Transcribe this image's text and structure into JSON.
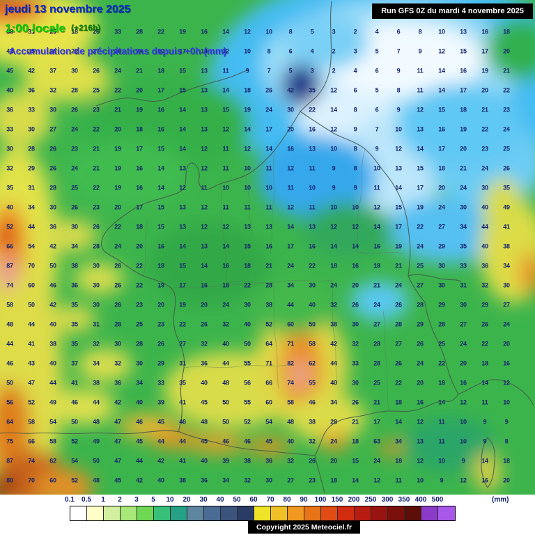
{
  "header": {
    "date_line": "jeudi 13 novembre 2025",
    "time_line": "1:00 locale",
    "offset": "(+216h)",
    "subtitle": "Accumulation de précipitations depuis +0h (mm)",
    "run_info": "Run GFS 0Z du mardi 4 novembre 2025"
  },
  "footer": {
    "copyright": "Copyright 2025 Meteociel.fr"
  },
  "legend": {
    "unit": "(mm)",
    "ticks": [
      "0.1",
      "0.5",
      "1",
      "2",
      "3",
      "5",
      "10",
      "20",
      "30",
      "40",
      "50",
      "60",
      "70",
      "80",
      "90",
      "100",
      "150",
      "200",
      "250",
      "300",
      "350",
      "400",
      "500"
    ],
    "colors": [
      "#FFFFFF",
      "#FFFFC8",
      "#D2F0A0",
      "#A8E878",
      "#6ED855",
      "#38C078",
      "#26A185",
      "#5E86A0",
      "#4A6C94",
      "#3A547E",
      "#2A3C64",
      "#F0E428",
      "#F0C028",
      "#F09820",
      "#E87418",
      "#E04C14",
      "#D02C10",
      "#B81C10",
      "#981410",
      "#7A100C",
      "#5C0E08",
      "#8A3CC8",
      "#A858E8"
    ]
  },
  "map": {
    "value_color": "#16246e",
    "rows": [
      "38 31 25 18 26 33 28 22 19 16 14 12 10 8 5 3 2 4 6 8 10 13 16 18",
      "42 35 28 22 27 30 24 20 17 14 12 10 8 6 4 2 3 5 7 9 12 15 17 20",
      "45 42 37 30 26 24 21 18 15 13 11 9 7 5 3 2 4 6 9 11 14 16 19 21",
      "40 36 32 28 25 22 20 17 15 13 14 18 26 42 35 12 6 5 8 11 14 17 20 22",
      "36 33 30 26 23 21 19 16 14 13 15 19 24 30 22 14 8 6 9 12 15 18 21 23",
      "33 30 27 24 22 20 18 16 14 13 12 14 17 20 16 12 9 7 10 13 16 19 22 24",
      "30 28 26 23 21 19 17 15 14 12 11 12 14 16 13 10 8 9 12 14 17 20 23 25",
      "32 29 26 24 21 19 16 14 13 12 11 10 11 12 11 9 8 10 13 15 18 21 24 26",
      "35 31 28 25 22 19 16 14 12 11 10 10 10 11 10 9 9 11 14 17 20 24 30 35",
      "40 34 30 26 23 20 17 15 13 12 11 11 11 12 11 10 10 12 15 19 24 30 40 49",
      "52 44 36 30 26 22 18 15 13 12 12 13 13 14 13 12 12 14 17 22 27 34 44 41",
      "66 54 42 34 28 24 20 16 14 13 14 15 16 17 16 14 14 16 19 24 29 35 40 38",
      "87 70 50 38 30 26 22 18 15 14 16 18 21 24 22 18 16 18 21 25 30 33 36 34",
      "74 60 46 36 30 26 22 19 17 16 18 22 28 34 30 24 20 21 24 27 30 31 32 30",
      "58 50 42 35 30 26 23 20 19 20 24 30 38 44 40 32 26 24 26 28 29 30 29 27",
      "48 44 40 35 31 28 25 23 22 26 32 40 52 60 50 38 30 27 28 29 28 27 26 24",
      "44 41 38 35 32 30 28 26 27 32 40 50 64 71 58 42 32 28 27 26 25 24 22 20",
      "46 43 40 37 34 32 30 29 31 36 44 55 71 82 62 44 33 28 26 24 22 20 18 16",
      "50 47 44 41 38 36 34 33 35 40 48 56 66 74 55 40 30 25 22 20 18 16 14 12",
      "56 52 49 46 44 42 40 39 41 45 50 55 60 58 46 34 26 21 18 16 14 12 11 10",
      "64 58 54 50 48 47 46 45 46 48 50 52 54 48 38 28 21 17 14 12 11 10 9 9",
      "75 66 58 52 49 47 45 44 44 45 46 46 45 40 32 24 18 63 34 13 11 10 9 8",
      "87 74 62 54 50 47 44 42 41 40 39 38 36 32 26 20 15 24 18 12 10 9 14 18",
      "80 70 60 52 48 45 42 40 38 36 34 32 30 27 23 18 14 12 11 10 9 12 16 20"
    ]
  }
}
